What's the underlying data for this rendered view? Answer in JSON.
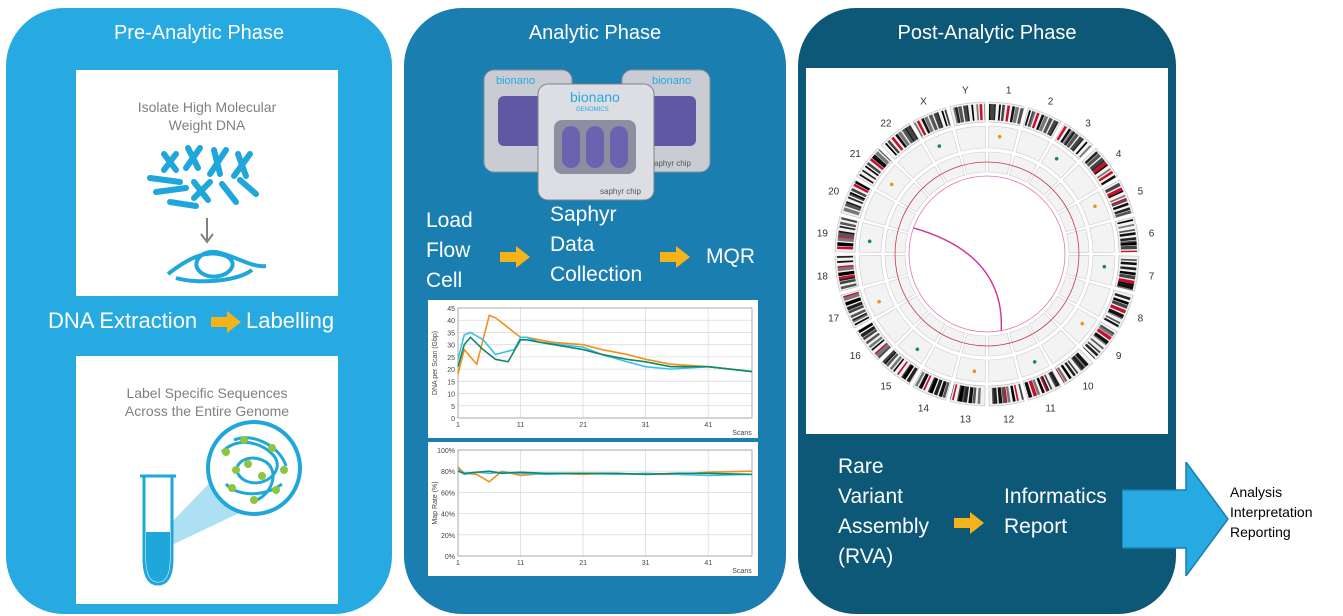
{
  "pre": {
    "title": "Pre-Analytic Phase",
    "card1_text_line1": "Isolate High Molecular",
    "card1_text_line2": "Weight DNA",
    "step_left": "DNA Extraction",
    "step_right": "Labelling",
    "card2_text_line1": "Label Specific Sequences",
    "card2_text_line2": "Across the Entire Genome"
  },
  "analytic": {
    "title": "Analytic Phase",
    "chip_brand": "bionano",
    "chip_sub": "GENOMICS",
    "chip_label": "saphyr chip",
    "step1_lines": [
      "Load",
      "Flow",
      "Cell"
    ],
    "step2_lines": [
      "Saphyr",
      "Data",
      "Collection"
    ],
    "step3": "MQR",
    "chart1": {
      "ylabel": "DNA per Scan (Gbp)",
      "xlabel": "Scans",
      "yticks": [
        "0",
        "5",
        "10",
        "15",
        "20",
        "25",
        "30",
        "35",
        "40",
        "45"
      ],
      "xticks": [
        "1",
        "11",
        "21",
        "31",
        "41"
      ]
    },
    "chart2": {
      "ylabel": "Map Rate (%)",
      "xlabel": "Scans",
      "yticks": [
        "0%",
        "20%",
        "40%",
        "60%",
        "80%",
        "100%"
      ],
      "xticks": [
        "1",
        "11",
        "21",
        "31",
        "41"
      ]
    }
  },
  "post": {
    "title": "Post-Analytic Phase",
    "chromosomes": [
      "1",
      "2",
      "3",
      "4",
      "5",
      "6",
      "7",
      "8",
      "9",
      "10",
      "11",
      "12",
      "13",
      "14",
      "15",
      "16",
      "17",
      "18",
      "19",
      "20",
      "21",
      "22",
      "X",
      "Y"
    ],
    "step1_lines": [
      "Rare",
      "Variant",
      "Assembly",
      "(RVA)"
    ],
    "step2_lines": [
      "Informatics",
      "Report"
    ]
  },
  "outputs": [
    "Analysis",
    "Interpretation",
    "Reporting"
  ],
  "colors": {
    "pre_panel": "#27a9e1",
    "analytic_panel": "#1a7fb0",
    "post_panel": "#0d5876",
    "arrow_yellow": "#f5b31b",
    "big_arrow": "#27a9e1",
    "series_orange": "#f39019",
    "series_cyan": "#3dc0e6",
    "series_green": "#13876a",
    "dna_blue": "#1fa6da",
    "label_green": "#8cc63f"
  },
  "chart_data": [
    {
      "type": "line",
      "xlabel": "Scans",
      "ylabel": "DNA per Scan (Gbp)",
      "xlim": [
        1,
        48
      ],
      "ylim": [
        0,
        45
      ],
      "series": [
        {
          "name": "",
          "x": [
            1,
            2,
            4,
            6,
            7,
            10,
            11,
            12,
            14,
            16,
            21,
            24,
            28,
            31,
            35,
            41,
            48
          ],
          "values": [
            18,
            28,
            22,
            42,
            41,
            35,
            33,
            33,
            32,
            31,
            30,
            28,
            26,
            24,
            22,
            21,
            19
          ]
        },
        {
          "name": "",
          "x": [
            1,
            2,
            3,
            5,
            7,
            10,
            11,
            12,
            14,
            21,
            24,
            28,
            31,
            35,
            41,
            48
          ],
          "values": [
            24,
            34,
            35,
            32,
            26,
            28,
            33,
            33,
            31,
            29,
            26,
            23,
            21,
            20,
            21,
            19
          ]
        },
        {
          "name": "",
          "x": [
            1,
            2,
            3,
            5,
            7,
            9,
            11,
            12,
            14,
            21,
            24,
            28,
            31,
            35,
            41,
            48
          ],
          "values": [
            21,
            30,
            33,
            28,
            24,
            23,
            32,
            32,
            31,
            28,
            26,
            24,
            23,
            21,
            21,
            19
          ]
        }
      ]
    },
    {
      "type": "line",
      "xlabel": "Scans",
      "ylabel": "Map Rate (%)",
      "xlim": [
        1,
        48
      ],
      "ylim": [
        0,
        100
      ],
      "series": [
        {
          "name": "",
          "x": [
            1,
            2,
            4,
            6,
            8,
            11,
            15,
            21,
            26,
            31,
            36,
            41,
            48
          ],
          "values": [
            84,
            78,
            77,
            70,
            80,
            76,
            78,
            77,
            78,
            77,
            77,
            79,
            80
          ]
        },
        {
          "name": "",
          "x": [
            1,
            2,
            4,
            6,
            8,
            11,
            15,
            21,
            26,
            31,
            36,
            41,
            48
          ],
          "values": [
            82,
            77,
            79,
            78,
            79,
            78,
            77,
            78,
            77,
            78,
            77,
            76,
            77
          ]
        },
        {
          "name": "",
          "x": [
            1,
            2,
            4,
            6,
            8,
            11,
            15,
            21,
            26,
            31,
            36,
            41,
            48
          ],
          "values": [
            80,
            78,
            79,
            80,
            78,
            79,
            78,
            78,
            78,
            77,
            78,
            78,
            77
          ]
        }
      ]
    }
  ]
}
